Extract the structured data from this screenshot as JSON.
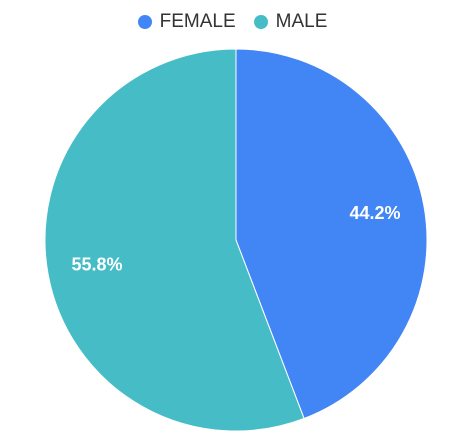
{
  "chart_data": {
    "type": "pie",
    "categories": [
      "FEMALE",
      "MALE"
    ],
    "values": [
      44.2,
      55.8
    ],
    "labels": [
      "44.2%",
      "55.8%"
    ],
    "colors": [
      "#4285f4",
      "#46bdc6"
    ],
    "legend_position": "top"
  }
}
